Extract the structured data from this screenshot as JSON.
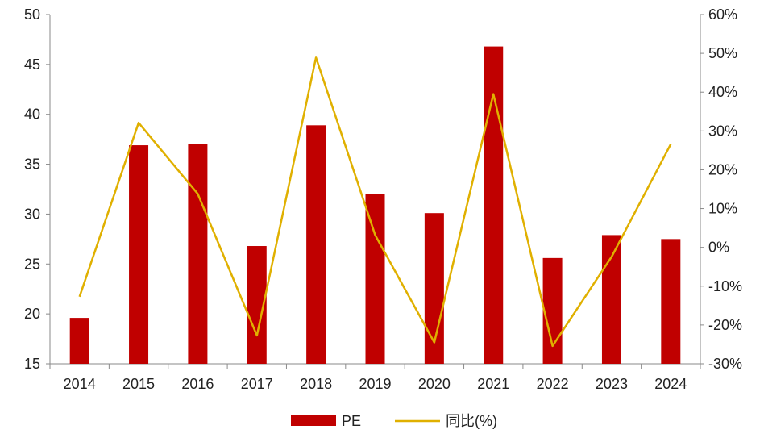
{
  "chart_data": {
    "type": "bar",
    "categories": [
      "2014",
      "2015",
      "2016",
      "2017",
      "2018",
      "2019",
      "2020",
      "2021",
      "2022",
      "2023",
      "2024"
    ],
    "series": [
      {
        "name": "PE",
        "type": "bar",
        "axis": "left",
        "color": "#C00000",
        "values": [
          19.6,
          36.9,
          37.0,
          26.8,
          38.9,
          32.0,
          30.1,
          46.8,
          25.6,
          27.9,
          27.5
        ]
      },
      {
        "name": "同比(%)",
        "type": "line",
        "axis": "right",
        "color": "#E0B000",
        "values": [
          -12.7,
          32.1,
          13.8,
          -22.7,
          48.9,
          3.2,
          -24.5,
          39.5,
          -25.4,
          -2.4,
          26.6
        ]
      }
    ],
    "y_left": {
      "min": 15,
      "max": 50,
      "step": 5,
      "tick_labels": [
        "15",
        "20",
        "25",
        "30",
        "35",
        "40",
        "45",
        "50"
      ]
    },
    "y_right": {
      "min": -30,
      "max": 60,
      "step": 10,
      "tick_labels": [
        "-30%",
        "-20%",
        "-10%",
        "0%",
        "10%",
        "20%",
        "30%",
        "40%",
        "50%",
        "60%"
      ]
    },
    "grid": false,
    "legend": {
      "position": "bottom-center",
      "entries": [
        "PE",
        "同比(%)"
      ]
    }
  }
}
